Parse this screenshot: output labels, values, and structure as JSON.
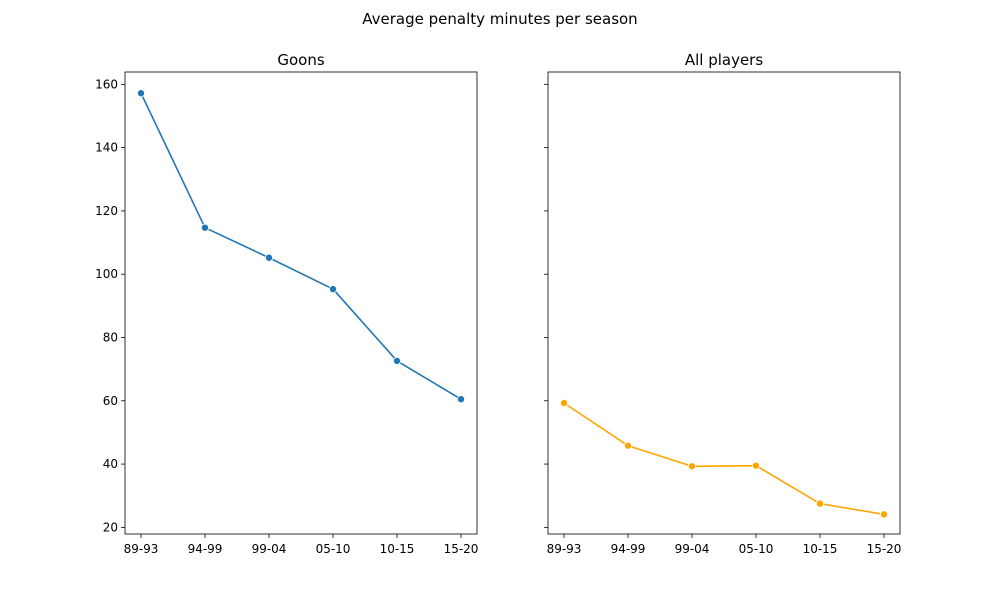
{
  "figure": {
    "suptitle": "Average penalty minutes per season"
  },
  "chart_data": [
    {
      "type": "line",
      "title": "Goons",
      "categories": [
        "89-93",
        "94-99",
        "99-04",
        "05-10",
        "10-15",
        "15-20"
      ],
      "values": [
        157.2,
        114.7,
        105.2,
        95.3,
        72.6,
        60.5
      ],
      "color": "#1f77b4",
      "marker": "circle",
      "xlabel": "",
      "ylabel": "",
      "ylim": [
        17.9,
        163.9
      ],
      "yticks": [
        20,
        40,
        60,
        80,
        100,
        120,
        140,
        160
      ],
      "show_ytick_labels": true,
      "grid": false
    },
    {
      "type": "line",
      "title": "All players",
      "categories": [
        "89-93",
        "94-99",
        "99-04",
        "05-10",
        "10-15",
        "15-20"
      ],
      "values": [
        59.3,
        45.8,
        39.3,
        39.5,
        27.5,
        24.1
      ],
      "color": "#ffa500",
      "marker": "circle",
      "xlabel": "",
      "ylabel": "",
      "ylim": [
        17.9,
        163.9
      ],
      "yticks": [
        20,
        40,
        60,
        80,
        100,
        120,
        140,
        160
      ],
      "show_ytick_labels": false,
      "grid": false
    }
  ]
}
